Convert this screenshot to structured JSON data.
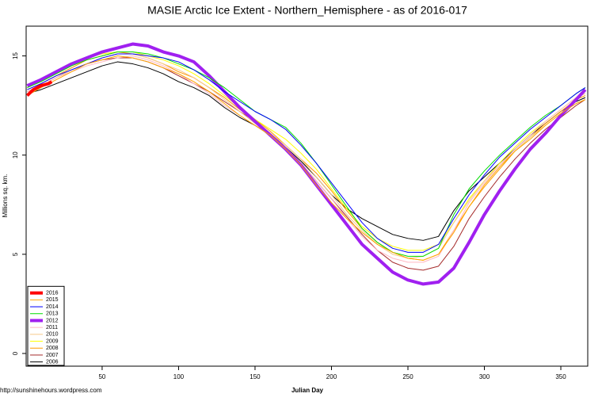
{
  "chart_data": {
    "type": "line",
    "title": "MASIE Arctic Ice Extent - Northern_Hemisphere - as of 2016-017",
    "xlabel": "Julian Day",
    "ylabel": "Millions sq. km.",
    "source": "http://sunshinehours.wordpress.com",
    "x": [
      1,
      10,
      20,
      30,
      40,
      50,
      60,
      70,
      80,
      90,
      100,
      110,
      120,
      130,
      140,
      150,
      160,
      170,
      180,
      190,
      200,
      210,
      220,
      230,
      240,
      250,
      260,
      270,
      280,
      290,
      300,
      310,
      320,
      330,
      340,
      350,
      360,
      366
    ],
    "xlim": [
      0.3,
      367.6
    ],
    "ylim": [
      -0.64,
      16.5
    ],
    "xticks": [
      50,
      100,
      150,
      200,
      250,
      300,
      350
    ],
    "yticks": [
      0,
      5,
      10,
      15
    ],
    "legend": "bottom-left",
    "series": [
      {
        "name": "2016",
        "color": "#ff0000",
        "line_width": 4,
        "x": [
          1,
          5,
          10,
          15,
          17
        ],
        "values": [
          13.0,
          13.3,
          13.5,
          13.6,
          13.7
        ]
      },
      {
        "name": "2015",
        "color": "#ffa500",
        "line_width": 1,
        "values": [
          13.0,
          13.4,
          13.8,
          14.2,
          14.6,
          14.8,
          15.0,
          14.9,
          14.7,
          14.4,
          14.1,
          13.7,
          13.2,
          12.6,
          12.0,
          11.5,
          11.0,
          10.3,
          9.5,
          8.5,
          7.6,
          6.8,
          6.1,
          5.5,
          5.1,
          4.8,
          4.7,
          5.0,
          6.1,
          7.4,
          8.5,
          9.4,
          10.2,
          10.8,
          11.5,
          12.1,
          12.6,
          12.8
        ]
      },
      {
        "name": "2014",
        "color": "#0000ff",
        "line_width": 1,
        "values": [
          13.3,
          13.6,
          14.0,
          14.3,
          14.6,
          14.9,
          15.1,
          15.1,
          15.0,
          14.9,
          14.7,
          14.3,
          13.8,
          13.2,
          12.7,
          12.2,
          11.8,
          11.3,
          10.5,
          9.6,
          8.6,
          7.6,
          6.6,
          5.8,
          5.3,
          5.1,
          5.1,
          5.5,
          6.8,
          8.0,
          9.0,
          9.9,
          10.6,
          11.3,
          11.9,
          12.5,
          13.1,
          13.4
        ]
      },
      {
        "name": "2013",
        "color": "#00dd00",
        "line_width": 1,
        "values": [
          13.4,
          13.7,
          14.1,
          14.5,
          14.8,
          15.0,
          15.2,
          15.2,
          15.1,
          14.9,
          14.6,
          14.3,
          13.9,
          13.4,
          12.8,
          12.2,
          11.8,
          11.4,
          10.6,
          9.6,
          8.5,
          7.4,
          6.3,
          5.6,
          5.1,
          4.9,
          4.9,
          5.3,
          7.0,
          8.3,
          9.2,
          10.0,
          10.7,
          11.4,
          12.0,
          12.5,
          13.1,
          13.4
        ]
      },
      {
        "name": "2012",
        "color": "#a020f0",
        "line_width": 4,
        "values": [
          13.5,
          13.8,
          14.2,
          14.6,
          14.9,
          15.2,
          15.4,
          15.6,
          15.5,
          15.2,
          15.0,
          14.7,
          14.0,
          13.2,
          12.4,
          11.7,
          11.0,
          10.3,
          9.5,
          8.5,
          7.5,
          6.5,
          5.5,
          4.8,
          4.1,
          3.7,
          3.5,
          3.6,
          4.3,
          5.6,
          7.0,
          8.2,
          9.3,
          10.3,
          11.1,
          12.0,
          12.8,
          13.3
        ]
      },
      {
        "name": "2011",
        "color": "#ffb6c1",
        "line_width": 1,
        "values": [
          13.2,
          13.5,
          13.9,
          14.2,
          14.5,
          14.7,
          14.9,
          15.0,
          14.8,
          14.5,
          14.1,
          13.6,
          13.1,
          12.5,
          12.0,
          11.5,
          11.0,
          10.4,
          9.6,
          8.7,
          7.8,
          6.8,
          5.9,
          5.2,
          4.8,
          4.6,
          4.6,
          4.9,
          6.2,
          7.6,
          8.6,
          9.5,
          10.3,
          11.0,
          11.7,
          12.3,
          12.9,
          13.1
        ]
      },
      {
        "name": "2010",
        "color": "#f5c88a",
        "line_width": 1,
        "values": [
          13.1,
          13.5,
          13.9,
          14.3,
          14.6,
          14.9,
          15.1,
          15.1,
          14.9,
          14.6,
          14.3,
          13.9,
          13.4,
          12.8,
          12.2,
          11.6,
          11.1,
          10.5,
          9.8,
          8.9,
          8.0,
          7.0,
          6.2,
          5.5,
          5.0,
          4.8,
          4.9,
          5.3,
          6.6,
          7.7,
          8.7,
          9.5,
          10.2,
          10.9,
          11.5,
          12.1,
          12.6,
          12.8
        ]
      },
      {
        "name": "2009",
        "color": "#ffff00",
        "line_width": 1,
        "values": [
          13.4,
          13.8,
          14.2,
          14.6,
          14.9,
          15.1,
          15.2,
          15.2,
          15.0,
          14.8,
          14.5,
          14.1,
          13.6,
          13.0,
          12.4,
          11.8,
          11.3,
          10.8,
          10.1,
          9.3,
          8.3,
          7.3,
          6.4,
          5.8,
          5.4,
          5.2,
          5.2,
          5.5,
          6.6,
          7.8,
          8.7,
          9.6,
          10.4,
          11.1,
          11.7,
          12.3,
          12.9,
          13.1
        ]
      },
      {
        "name": "2008",
        "color": "#ff9900",
        "line_width": 1,
        "values": [
          13.3,
          13.6,
          14.0,
          14.4,
          14.8,
          15.0,
          15.2,
          15.1,
          14.9,
          14.6,
          14.2,
          13.9,
          13.4,
          12.9,
          12.3,
          11.8,
          11.2,
          10.5,
          9.8,
          9.1,
          8.2,
          7.2,
          6.3,
          5.6,
          5.1,
          4.8,
          4.7,
          5.0,
          6.2,
          7.4,
          8.4,
          9.3,
          10.2,
          10.9,
          11.6,
          12.2,
          12.8,
          13.0
        ]
      },
      {
        "name": "2007",
        "color": "#a52a2a",
        "line_width": 1,
        "values": [
          13.2,
          13.5,
          13.9,
          14.3,
          14.6,
          14.8,
          14.9,
          14.9,
          14.7,
          14.4,
          14.0,
          13.6,
          13.2,
          12.7,
          12.2,
          11.7,
          11.1,
          10.4,
          9.6,
          8.7,
          7.8,
          6.9,
          6.0,
          5.2,
          4.6,
          4.3,
          4.2,
          4.4,
          5.4,
          6.8,
          7.9,
          8.9,
          9.8,
          10.6,
          11.3,
          11.9,
          12.5,
          12.8
        ]
      },
      {
        "name": "2006",
        "color": "#000000",
        "line_width": 1,
        "values": [
          13.1,
          13.3,
          13.6,
          13.9,
          14.2,
          14.5,
          14.7,
          14.6,
          14.4,
          14.1,
          13.7,
          13.4,
          13.0,
          12.4,
          11.9,
          11.5,
          11.0,
          10.4,
          9.7,
          8.9,
          8.0,
          7.3,
          6.8,
          6.4,
          6.0,
          5.8,
          5.7,
          5.9,
          7.2,
          8.2,
          8.9,
          9.6,
          10.3,
          11.0,
          11.6,
          12.2,
          12.7,
          12.9
        ]
      }
    ]
  }
}
